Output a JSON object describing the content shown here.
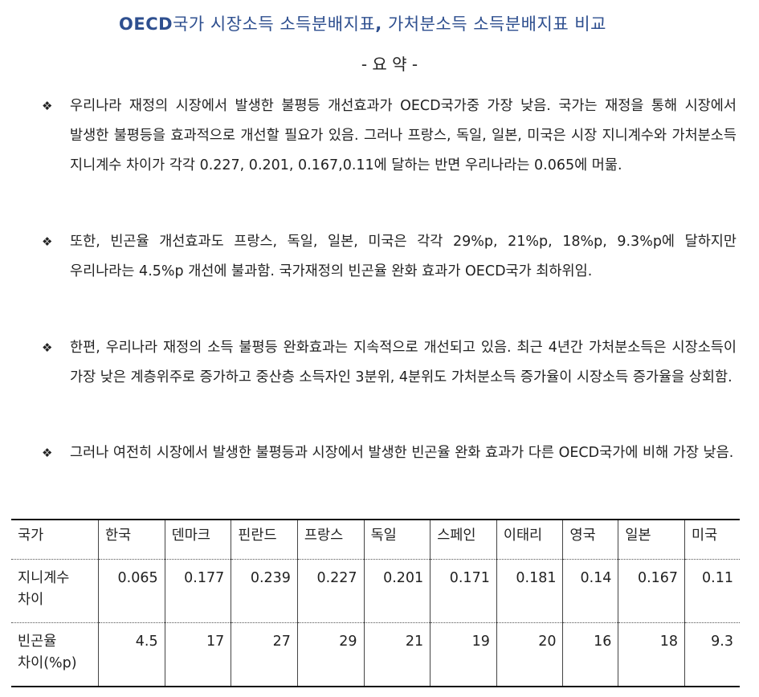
{
  "title": {
    "bold_part": "OECD",
    "rest": "국가 시장소득 소득분배지표",
    "comma": ",",
    "rest2": " 가처분소득 소득분배지표 비교"
  },
  "subtitle": "-  요 약  -",
  "bullet_symbol": "❖",
  "bullets": [
    "우리나라 재정의 시장에서 발생한 불평등 개선효과가 OECD국가중 가장 낮음. 국가는 재정을 통해 시장에서 발생한 불평등을 효과적으로 개선할 필요가 있음. 그러나 프랑스, 독일, 일본, 미국은 시장 지니계수와 가처분소득 지니계수 차이가 각각 0.227, 0.201, 0.167,0.11에 달하는 반면 우리나라는 0.065에 머묾.",
    "또한, 빈곤율 개선효과도 프랑스, 독일, 일본, 미국은 각각 29%p, 21%p, 18%p, 9.3%p에 달하지만 우리나라는  4.5%p 개선에 불과함. 국가재정의 빈곤율 완화 효과가 OECD국가 최하위임.",
    "한편, 우리나라 재정의 소득 불평등 완화효과는 지속적으로 개선되고 있음. 최근 4년간 가처분소득은 시장소득이 가장 낮은 계층위주로 증가하고 중산층 소득자인 3분위, 4분위도 가처분소득 증가율이 시장소득 증가율을 상회함.",
    "그러나 여전히 시장에서 발생한 불평등과 시장에서 발생한 빈곤율 완화 효과가 다른 OECD국가에 비해 가장 낮음."
  ],
  "table": {
    "header_label": "국가",
    "countries": [
      "한국",
      "덴마크",
      "핀란드",
      "프랑스",
      "독일",
      "스페인",
      "이태리",
      "영국",
      "일본",
      "미국"
    ],
    "rows": [
      {
        "label_line1": "지니계수",
        "label_line2": "차이",
        "values": [
          "0.065",
          "0.177",
          "0.239",
          "0.227",
          "0.201",
          "0.171",
          "0.181",
          "0.14",
          "0.167",
          "0.11"
        ]
      },
      {
        "label_line1": "빈곤율",
        "label_line2": "차이(%p)",
        "values": [
          "4.5",
          "17",
          "27",
          "29",
          "21",
          "19",
          "20",
          "16",
          "18",
          "9.3"
        ]
      }
    ]
  }
}
